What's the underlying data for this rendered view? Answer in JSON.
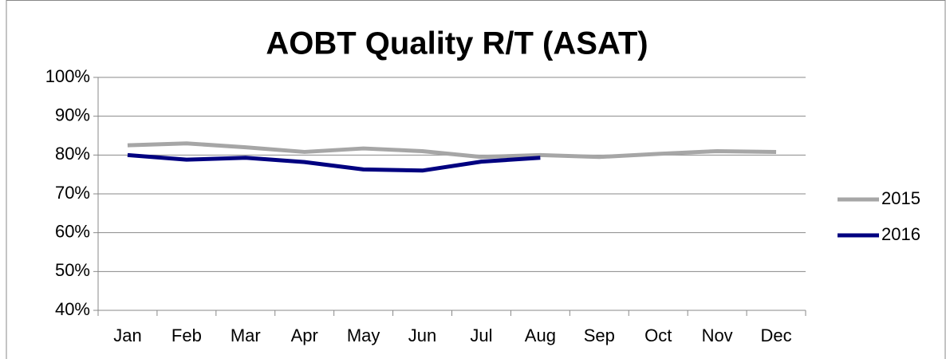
{
  "chart_data": {
    "type": "line",
    "title": "AOBT Quality R/T (ASAT)",
    "categories": [
      "Jan",
      "Feb",
      "Mar",
      "Apr",
      "May",
      "Jun",
      "Jul",
      "Aug",
      "Sep",
      "Oct",
      "Nov",
      "Dec"
    ],
    "series": [
      {
        "name": "2015",
        "color": "#a6a6a6",
        "values": [
          82.5,
          83,
          82,
          80.8,
          81.7,
          81,
          79.5,
          80,
          79.5,
          80.3,
          81,
          80.8
        ]
      },
      {
        "name": "2016",
        "color": "#000080",
        "values": [
          80,
          78.8,
          79.3,
          78.2,
          76.3,
          76,
          78.3,
          79.3,
          null,
          null,
          null,
          null
        ]
      }
    ],
    "ylim": [
      40,
      100
    ],
    "yticks": [
      {
        "value": 40,
        "label": "40%"
      },
      {
        "value": 50,
        "label": "50%"
      },
      {
        "value": 60,
        "label": "60%"
      },
      {
        "value": 70,
        "label": "70%"
      },
      {
        "value": 80,
        "label": "80%"
      },
      {
        "value": 90,
        "label": "90%"
      },
      {
        "value": 100,
        "label": "100%"
      }
    ],
    "grid": true,
    "legend": "right"
  }
}
